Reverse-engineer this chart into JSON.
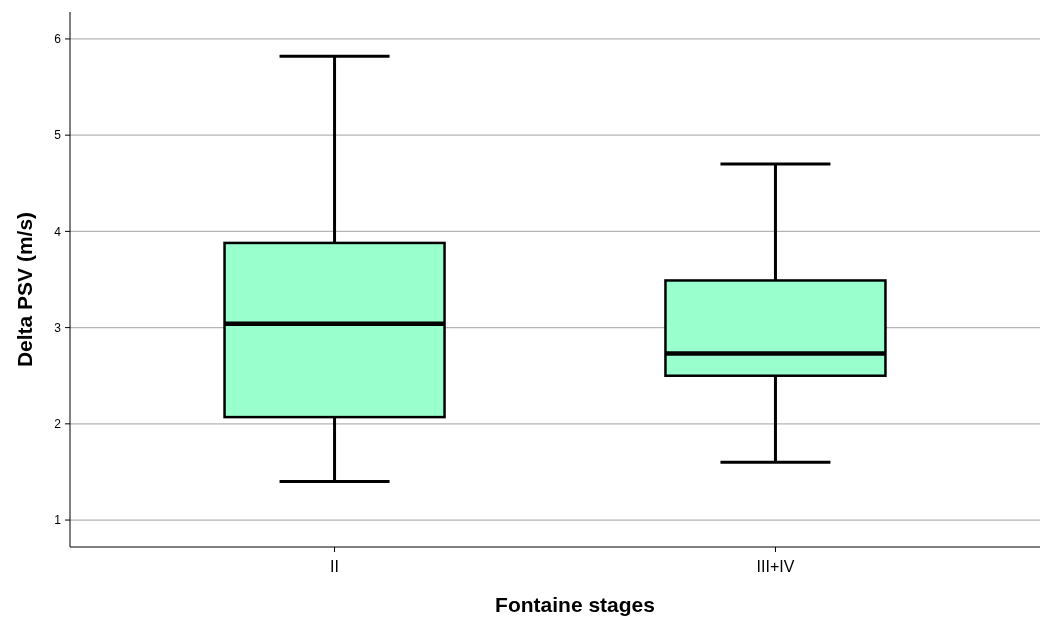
{
  "chart_data": {
    "type": "box",
    "xlabel": "Fontaine stages",
    "ylabel": "Delta PSV (m/s)",
    "categories": [
      "II",
      "III+IV"
    ],
    "boxes": [
      {
        "low": 1.4,
        "q1": 2.07,
        "median": 3.04,
        "q3": 3.88,
        "high": 5.82
      },
      {
        "low": 1.6,
        "q1": 2.5,
        "median": 2.73,
        "q3": 3.49,
        "high": 4.7
      }
    ],
    "color": "#99ffcc",
    "ylim": [
      0.72,
      6.28
    ],
    "yticks": [
      1,
      2,
      3,
      4,
      5,
      6
    ],
    "grid": "y"
  }
}
